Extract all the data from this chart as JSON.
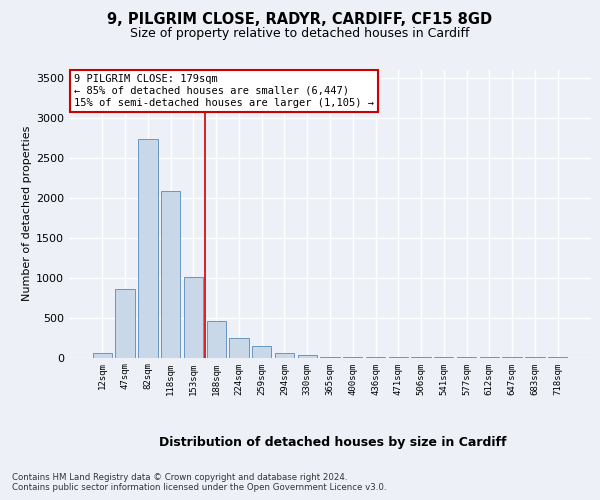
{
  "title_line1": "9, PILGRIM CLOSE, RADYR, CARDIFF, CF15 8GD",
  "title_line2": "Size of property relative to detached houses in Cardiff",
  "xlabel": "Distribution of detached houses by size in Cardiff",
  "ylabel": "Number of detached properties",
  "categories": [
    "12sqm",
    "47sqm",
    "82sqm",
    "118sqm",
    "153sqm",
    "188sqm",
    "224sqm",
    "259sqm",
    "294sqm",
    "330sqm",
    "365sqm",
    "400sqm",
    "436sqm",
    "471sqm",
    "506sqm",
    "541sqm",
    "577sqm",
    "612sqm",
    "647sqm",
    "683sqm",
    "718sqm"
  ],
  "values": [
    55,
    855,
    2730,
    2080,
    1010,
    460,
    240,
    150,
    60,
    30,
    10,
    5,
    5,
    5,
    5,
    3,
    3,
    3,
    3,
    3,
    3
  ],
  "bar_color": "#c8d8e8",
  "bar_edge_color": "#5588bb",
  "vline_index": 4.5,
  "annotation_text_line1": "9 PILGRIM CLOSE: 179sqm",
  "annotation_text_line2": "← 85% of detached houses are smaller (6,447)",
  "annotation_text_line3": "15% of semi-detached houses are larger (1,105) →",
  "annotation_box_color": "#ffffff",
  "annotation_box_edge_color": "#cc0000",
  "vline_color": "#cc0000",
  "ylim": [
    0,
    3600
  ],
  "yticks": [
    0,
    500,
    1000,
    1500,
    2000,
    2500,
    3000,
    3500
  ],
  "bg_color": "#edf1f7",
  "plot_bg_color": "#edf1f7",
  "grid_color": "#ffffff",
  "footer_line1": "Contains HM Land Registry data © Crown copyright and database right 2024.",
  "footer_line2": "Contains public sector information licensed under the Open Government Licence v3.0."
}
